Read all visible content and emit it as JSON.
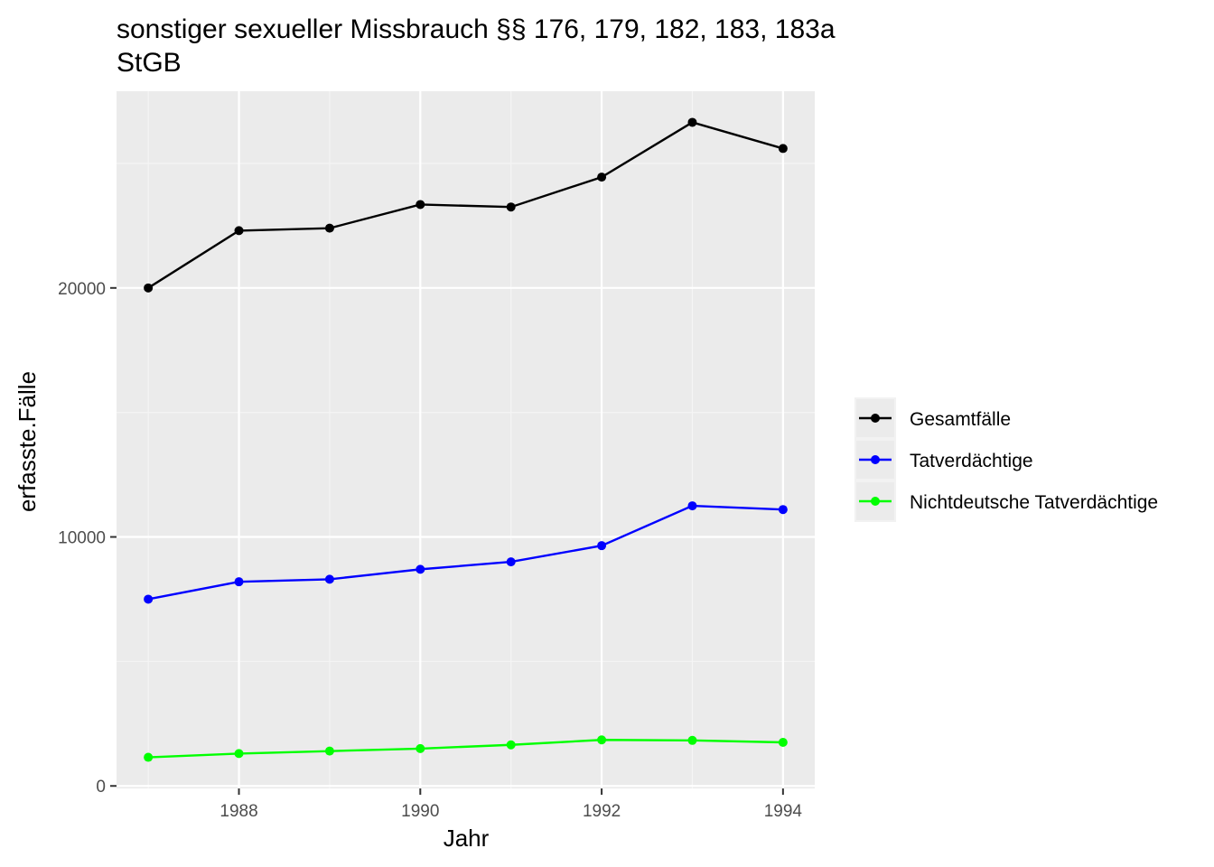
{
  "chart_data": {
    "type": "line",
    "title_lines": [
      "sonstiger sexueller Missbrauch §§ 176, 179, 182, 183, 183a",
      "StGB"
    ],
    "xlabel": "Jahr",
    "ylabel": "erfasste.Fälle",
    "x": [
      1987,
      1988,
      1989,
      1990,
      1991,
      1992,
      1993,
      1994
    ],
    "xlim": [
      1986.65,
      1994.35
    ],
    "ylim": [
      -100,
      27900
    ],
    "x_ticks": [
      1988,
      1990,
      1992,
      1994
    ],
    "x_tick_labels": [
      "1988",
      "1990",
      "1992",
      "1994"
    ],
    "y_ticks": [
      0,
      10000,
      20000
    ],
    "y_tick_labels": [
      "0",
      "10000",
      "20000"
    ],
    "grid": true,
    "legend_position": "right",
    "series": [
      {
        "name": "Gesamtfälle",
        "color": "#000000",
        "values": [
          20000,
          22300,
          22400,
          23350,
          23250,
          24450,
          26650,
          25600
        ]
      },
      {
        "name": "Tatverdächtige",
        "color": "#0000ff",
        "values": [
          7500,
          8200,
          8300,
          8700,
          9000,
          9650,
          11250,
          11100
        ]
      },
      {
        "name": "Nichtdeutsche Tatverdächtige",
        "color": "#00ff00",
        "values": [
          1150,
          1300,
          1400,
          1500,
          1650,
          1850,
          1830,
          1750
        ]
      }
    ]
  }
}
